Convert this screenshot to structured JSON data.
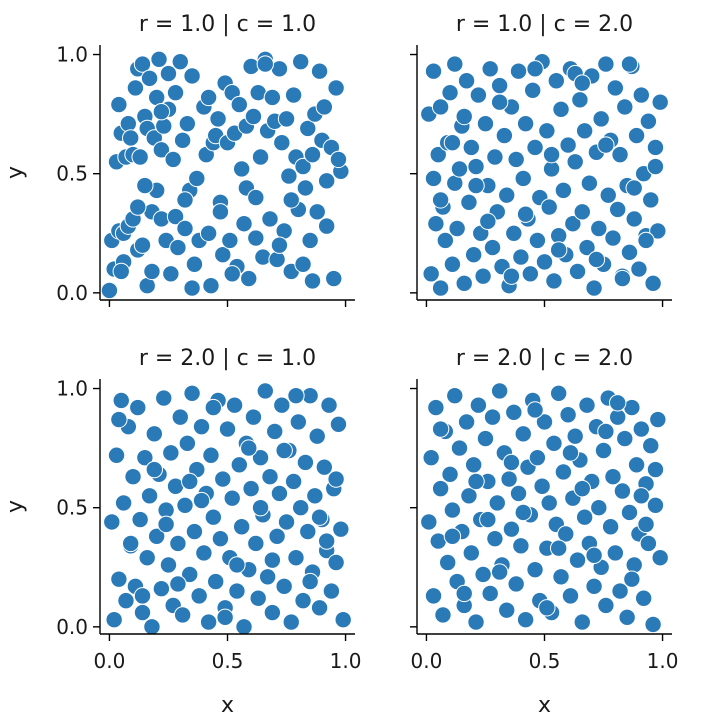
{
  "chart_data": [
    {
      "type": "scatter",
      "title": "r = 1.0 | c = 1.0",
      "xlabel": "",
      "ylabel": "y",
      "xlim": [
        -0.04,
        1.04
      ],
      "ylim": [
        -0.03,
        1.04
      ],
      "xticks": [
        0.0,
        0.5,
        1.0
      ],
      "yticks": [
        0.0,
        0.5,
        1.0
      ],
      "xtick_labels": [
        "",
        "",
        ""
      ],
      "ytick_labels": [
        "0.0",
        "0.5",
        "1.0"
      ],
      "color": "#2a7ab8",
      "x": [
        0.0,
        0.01,
        0.02,
        0.03,
        0.04,
        0.04,
        0.05,
        0.06,
        0.06,
        0.07,
        0.08,
        0.08,
        0.09,
        0.1,
        0.1,
        0.11,
        0.12,
        0.12,
        0.13,
        0.14,
        0.14,
        0.15,
        0.16,
        0.16,
        0.17,
        0.18,
        0.18,
        0.19,
        0.2,
        0.2,
        0.21,
        0.22,
        0.22,
        0.23,
        0.24,
        0.25,
        0.26,
        0.27,
        0.28,
        0.28,
        0.29,
        0.3,
        0.31,
        0.32,
        0.33,
        0.34,
        0.35,
        0.36,
        0.37,
        0.38,
        0.4,
        0.41,
        0.42,
        0.43,
        0.44,
        0.45,
        0.46,
        0.47,
        0.48,
        0.49,
        0.5,
        0.51,
        0.52,
        0.53,
        0.54,
        0.55,
        0.56,
        0.57,
        0.58,
        0.59,
        0.6,
        0.61,
        0.62,
        0.63,
        0.64,
        0.65,
        0.66,
        0.67,
        0.68,
        0.69,
        0.7,
        0.71,
        0.72,
        0.73,
        0.74,
        0.75,
        0.76,
        0.77,
        0.78,
        0.79,
        0.8,
        0.81,
        0.82,
        0.83,
        0.84,
        0.85,
        0.86,
        0.87,
        0.88,
        0.89,
        0.9,
        0.92,
        0.94,
        0.96,
        0.98,
        0.95,
        0.91,
        0.86,
        0.77,
        0.66,
        0.58,
        0.47,
        0.35,
        0.25,
        0.15,
        0.05,
        0.12,
        0.22,
        0.32,
        0.42,
        0.52,
        0.62,
        0.72,
        0.82,
        0.92,
        0.97
      ],
      "y": [
        0.01,
        0.22,
        0.1,
        0.55,
        0.26,
        0.79,
        0.67,
        0.25,
        0.13,
        0.57,
        0.28,
        0.71,
        0.65,
        0.58,
        0.31,
        0.86,
        0.18,
        0.94,
        0.57,
        0.96,
        0.2,
        0.74,
        0.03,
        0.69,
        0.9,
        0.34,
        0.09,
        0.65,
        0.43,
        0.82,
        0.98,
        0.6,
        0.31,
        0.7,
        0.22,
        0.92,
        0.08,
        0.56,
        0.32,
        0.84,
        0.19,
        0.97,
        0.64,
        0.27,
        0.71,
        0.43,
        0.91,
        0.12,
        0.48,
        0.22,
        0.78,
        0.58,
        0.25,
        0.03,
        0.63,
        0.66,
        0.73,
        0.38,
        0.16,
        0.88,
        0.63,
        0.22,
        0.84,
        0.67,
        0.11,
        0.79,
        0.52,
        0.29,
        0.7,
        0.06,
        0.95,
        0.74,
        0.23,
        0.84,
        0.57,
        0.15,
        0.98,
        0.68,
        0.31,
        0.82,
        0.72,
        0.14,
        0.94,
        0.63,
        0.26,
        0.73,
        0.49,
        0.09,
        0.83,
        0.57,
        0.35,
        0.97,
        0.53,
        0.44,
        0.69,
        0.22,
        0.58,
        0.75,
        0.34,
        0.93,
        0.64,
        0.47,
        0.61,
        0.86,
        0.51,
        0.06,
        0.78,
        0.05,
        0.39,
        0.96,
        0.44,
        0.34,
        0.02,
        0.77,
        0.45,
        0.09,
        0.36,
        0.76,
        0.39,
        0.82,
        0.08,
        0.4,
        0.2,
        0.12,
        0.28,
        0.56
      ]
    },
    {
      "type": "scatter",
      "title": "r = 1.0 | c = 2.0",
      "xlabel": "",
      "ylabel": "",
      "xlim": [
        -0.04,
        1.04
      ],
      "ylim": [
        -0.03,
        1.04
      ],
      "xticks": [
        0.0,
        0.5,
        1.0
      ],
      "yticks": [
        0.0,
        0.5,
        1.0
      ],
      "xtick_labels": [
        "",
        "",
        ""
      ],
      "ytick_labels": [
        "",
        "",
        ""
      ],
      "color": "#2a7ab8",
      "x": [
        0.01,
        0.02,
        0.03,
        0.03,
        0.04,
        0.05,
        0.06,
        0.06,
        0.07,
        0.08,
        0.09,
        0.1,
        0.11,
        0.12,
        0.12,
        0.13,
        0.14,
        0.15,
        0.16,
        0.17,
        0.18,
        0.19,
        0.2,
        0.21,
        0.22,
        0.23,
        0.24,
        0.25,
        0.26,
        0.27,
        0.28,
        0.29,
        0.3,
        0.31,
        0.32,
        0.33,
        0.34,
        0.35,
        0.36,
        0.37,
        0.38,
        0.39,
        0.4,
        0.41,
        0.42,
        0.43,
        0.44,
        0.45,
        0.46,
        0.47,
        0.48,
        0.49,
        0.5,
        0.51,
        0.52,
        0.53,
        0.54,
        0.55,
        0.56,
        0.57,
        0.58,
        0.59,
        0.6,
        0.61,
        0.62,
        0.63,
        0.64,
        0.65,
        0.66,
        0.67,
        0.68,
        0.69,
        0.7,
        0.71,
        0.72,
        0.73,
        0.74,
        0.75,
        0.76,
        0.77,
        0.78,
        0.79,
        0.8,
        0.81,
        0.82,
        0.83,
        0.84,
        0.85,
        0.86,
        0.87,
        0.88,
        0.89,
        0.9,
        0.91,
        0.92,
        0.93,
        0.94,
        0.95,
        0.96,
        0.97,
        0.98,
        0.99,
        0.97,
        0.93,
        0.88,
        0.83,
        0.72,
        0.63,
        0.53,
        0.42,
        0.31,
        0.21,
        0.11,
        0.06,
        0.16,
        0.26,
        0.36,
        0.46,
        0.56,
        0.66,
        0.76,
        0.86
      ],
      "y": [
        0.75,
        0.08,
        0.48,
        0.93,
        0.29,
        0.58,
        0.02,
        0.78,
        0.36,
        0.22,
        0.63,
        0.84,
        0.12,
        0.46,
        0.96,
        0.27,
        0.52,
        0.7,
        0.04,
        0.89,
        0.38,
        0.61,
        0.16,
        0.53,
        0.83,
        0.25,
        0.07,
        0.71,
        0.45,
        0.94,
        0.19,
        0.57,
        0.34,
        0.87,
        0.11,
        0.66,
        0.41,
        0.03,
        0.78,
        0.25,
        0.56,
        0.93,
        0.15,
        0.48,
        0.71,
        0.31,
        0.08,
        0.85,
        0.61,
        0.22,
        0.4,
        0.97,
        0.13,
        0.68,
        0.36,
        0.52,
        0.05,
        0.89,
        0.24,
        0.77,
        0.43,
        0.16,
        0.62,
        0.94,
        0.29,
        0.55,
        0.09,
        0.81,
        0.34,
        0.68,
        0.19,
        0.46,
        0.91,
        0.02,
        0.59,
        0.27,
        0.73,
        0.12,
        0.96,
        0.41,
        0.64,
        0.23,
        0.86,
        0.35,
        0.58,
        0.07,
        0.78,
        0.45,
        0.17,
        0.95,
        0.31,
        0.66,
        0.1,
        0.83,
        0.5,
        0.24,
        0.72,
        0.39,
        0.04,
        0.61,
        0.26,
        0.8,
        0.53,
        0.22,
        0.44,
        0.06,
        0.14,
        0.92,
        0.58,
        0.33,
        0.8,
        0.45,
        0.63,
        0.39,
        0.74,
        0.3,
        0.07,
        0.94,
        0.18,
        0.88,
        0.62,
        0.96
      ]
    },
    {
      "type": "scatter",
      "title": "r = 2.0 | c = 1.0",
      "xlabel": "x",
      "ylabel": "y",
      "xlim": [
        -0.04,
        1.04
      ],
      "ylim": [
        -0.03,
        1.04
      ],
      "xticks": [
        0.0,
        0.5,
        1.0
      ],
      "yticks": [
        0.0,
        0.5,
        1.0
      ],
      "xtick_labels": [
        "0.0",
        "0.5",
        "1.0"
      ],
      "ytick_labels": [
        "0.0",
        "0.5",
        "1.0"
      ],
      "color": "#2a7ab8",
      "x": [
        0.01,
        0.02,
        0.03,
        0.04,
        0.05,
        0.06,
        0.07,
        0.08,
        0.09,
        0.1,
        0.11,
        0.12,
        0.13,
        0.14,
        0.15,
        0.16,
        0.17,
        0.18,
        0.19,
        0.2,
        0.21,
        0.22,
        0.23,
        0.24,
        0.25,
        0.26,
        0.27,
        0.28,
        0.29,
        0.3,
        0.31,
        0.32,
        0.33,
        0.34,
        0.35,
        0.36,
        0.37,
        0.38,
        0.39,
        0.4,
        0.41,
        0.42,
        0.43,
        0.44,
        0.45,
        0.46,
        0.47,
        0.48,
        0.49,
        0.5,
        0.51,
        0.52,
        0.53,
        0.54,
        0.55,
        0.56,
        0.57,
        0.58,
        0.59,
        0.6,
        0.61,
        0.62,
        0.63,
        0.64,
        0.65,
        0.66,
        0.67,
        0.68,
        0.69,
        0.7,
        0.71,
        0.72,
        0.73,
        0.74,
        0.75,
        0.76,
        0.77,
        0.78,
        0.79,
        0.8,
        0.81,
        0.82,
        0.83,
        0.84,
        0.85,
        0.86,
        0.87,
        0.88,
        0.89,
        0.9,
        0.91,
        0.92,
        0.93,
        0.94,
        0.95,
        0.96,
        0.97,
        0.98,
        0.99,
        0.96,
        0.92,
        0.85,
        0.74,
        0.64,
        0.54,
        0.44,
        0.34,
        0.24,
        0.14,
        0.04,
        0.09,
        0.19,
        0.29,
        0.39,
        0.49,
        0.59,
        0.69,
        0.79,
        0.89
      ],
      "y": [
        0.44,
        0.03,
        0.72,
        0.2,
        0.95,
        0.52,
        0.11,
        0.84,
        0.34,
        0.63,
        0.17,
        0.92,
        0.45,
        0.06,
        0.71,
        0.29,
        0.55,
        0.0,
        0.81,
        0.38,
        0.64,
        0.16,
        0.96,
        0.49,
        0.26,
        0.73,
        0.09,
        0.59,
        0.35,
        0.88,
        0.05,
        0.51,
        0.77,
        0.22,
        0.98,
        0.4,
        0.66,
        0.13,
        0.84,
        0.31,
        0.56,
        0.02,
        0.72,
        0.46,
        0.19,
        0.95,
        0.37,
        0.62,
        0.08,
        0.83,
        0.29,
        0.54,
        0.93,
        0.15,
        0.68,
        0.42,
        0.0,
        0.77,
        0.24,
        0.58,
        0.88,
        0.35,
        0.12,
        0.71,
        0.47,
        0.99,
        0.21,
        0.63,
        0.06,
        0.82,
        0.38,
        0.56,
        0.93,
        0.17,
        0.44,
        0.74,
        0.02,
        0.61,
        0.29,
        0.86,
        0.5,
        0.11,
        0.69,
        0.4,
        0.97,
        0.23,
        0.55,
        0.8,
        0.08,
        0.45,
        0.67,
        0.32,
        0.93,
        0.15,
        0.58,
        0.27,
        0.85,
        0.41,
        0.03,
        0.62,
        0.36,
        0.19,
        0.74,
        0.5,
        0.26,
        0.92,
        0.61,
        0.43,
        0.13,
        0.87,
        0.35,
        0.66,
        0.18,
        0.53,
        0.04,
        0.75,
        0.28,
        0.97,
        0.46
      ],
      "note_series": ""
    },
    {
      "type": "scatter",
      "title": "r = 2.0 | c = 2.0",
      "xlabel": "x",
      "ylabel": "",
      "xlim": [
        -0.04,
        1.04
      ],
      "ylim": [
        -0.03,
        1.04
      ],
      "xticks": [
        0.0,
        0.5,
        1.0
      ],
      "yticks": [
        0.0,
        0.5,
        1.0
      ],
      "xtick_labels": [
        "0.0",
        "0.5",
        "1.0"
      ],
      "ytick_labels": [
        "",
        "",
        ""
      ],
      "color": "#2a7ab8",
      "x": [
        0.01,
        0.02,
        0.03,
        0.04,
        0.05,
        0.06,
        0.07,
        0.08,
        0.09,
        0.1,
        0.11,
        0.12,
        0.13,
        0.14,
        0.15,
        0.16,
        0.17,
        0.18,
        0.19,
        0.2,
        0.21,
        0.22,
        0.23,
        0.24,
        0.25,
        0.26,
        0.27,
        0.28,
        0.29,
        0.3,
        0.31,
        0.32,
        0.33,
        0.34,
        0.35,
        0.36,
        0.37,
        0.38,
        0.39,
        0.4,
        0.41,
        0.42,
        0.43,
        0.44,
        0.45,
        0.46,
        0.47,
        0.48,
        0.49,
        0.5,
        0.51,
        0.52,
        0.53,
        0.54,
        0.55,
        0.56,
        0.57,
        0.58,
        0.59,
        0.6,
        0.61,
        0.62,
        0.63,
        0.64,
        0.65,
        0.66,
        0.67,
        0.68,
        0.69,
        0.7,
        0.71,
        0.72,
        0.73,
        0.74,
        0.75,
        0.76,
        0.77,
        0.78,
        0.79,
        0.8,
        0.81,
        0.82,
        0.83,
        0.84,
        0.85,
        0.86,
        0.87,
        0.88,
        0.89,
        0.9,
        0.91,
        0.92,
        0.93,
        0.94,
        0.95,
        0.96,
        0.97,
        0.98,
        0.99,
        0.97,
        0.93,
        0.87,
        0.76,
        0.66,
        0.56,
        0.46,
        0.36,
        0.26,
        0.16,
        0.06,
        0.11,
        0.21,
        0.31,
        0.41,
        0.51,
        0.61,
        0.71,
        0.81,
        0.91
      ],
      "y": [
        0.44,
        0.71,
        0.13,
        0.92,
        0.36,
        0.58,
        0.05,
        0.82,
        0.27,
        0.64,
        0.49,
        0.97,
        0.19,
        0.75,
        0.4,
        0.09,
        0.86,
        0.55,
        0.31,
        0.68,
        0.02,
        0.93,
        0.45,
        0.22,
        0.79,
        0.61,
        0.14,
        0.88,
        0.37,
        0.52,
        0.99,
        0.26,
        0.73,
        0.07,
        0.62,
        0.41,
        0.9,
        0.18,
        0.56,
        0.34,
        0.81,
        0.03,
        0.67,
        0.47,
        0.95,
        0.24,
        0.71,
        0.11,
        0.59,
        0.86,
        0.33,
        0.52,
        0.06,
        0.77,
        0.43,
        0.98,
        0.21,
        0.65,
        0.39,
        0.89,
        0.13,
        0.54,
        0.8,
        0.28,
        0.7,
        0.02,
        0.46,
        0.93,
        0.35,
        0.61,
        0.17,
        0.84,
        0.5,
        0.25,
        0.74,
        0.09,
        0.96,
        0.42,
        0.63,
        0.31,
        0.88,
        0.15,
        0.57,
        0.79,
        0.04,
        0.48,
        0.92,
        0.26,
        0.68,
        0.39,
        0.83,
        0.12,
        0.6,
        0.35,
        0.76,
        0.01,
        0.51,
        0.87,
        0.29,
        0.66,
        0.43,
        0.2,
        0.82,
        0.58,
        0.33,
        0.91,
        0.69,
        0.45,
        0.14,
        0.83,
        0.38,
        0.61,
        0.23,
        0.48,
        0.08,
        0.73,
        0.3,
        0.94,
        0.55
      ]
    }
  ]
}
